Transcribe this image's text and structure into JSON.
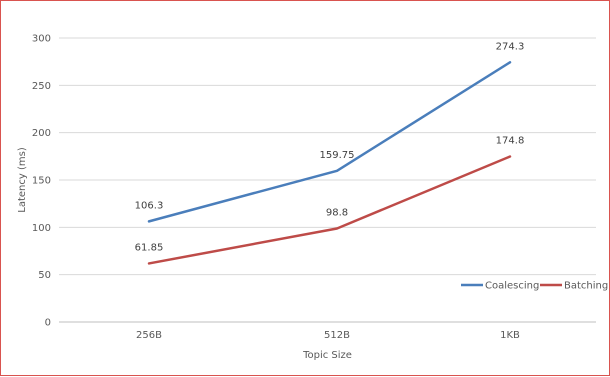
{
  "chart_data": {
    "type": "line",
    "title": "",
    "xlabel": "Topic Size",
    "ylabel": "Latency (ms)",
    "categories": [
      "256B",
      "512B",
      "1KB"
    ],
    "ylim": [
      0,
      300
    ],
    "yticks": [
      0,
      50,
      100,
      150,
      200,
      250,
      300
    ],
    "grid": "horizontal",
    "legend_position": "bottom-right",
    "series": [
      {
        "name": "Coalescing",
        "color": "#4a7ebb",
        "values": [
          106.3,
          159.75,
          274.3
        ]
      },
      {
        "name": "Batching",
        "color": "#be4b48",
        "values": [
          61.85,
          98.8,
          174.8
        ]
      }
    ]
  }
}
